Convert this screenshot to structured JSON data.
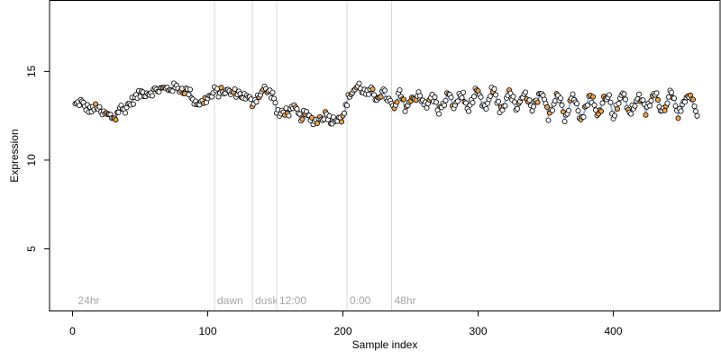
{
  "chart_data": {
    "type": "scatter",
    "xlabel": "Sample index",
    "ylabel": "Expression",
    "xlim": [
      -17,
      479
    ],
    "ylim": [
      1.5,
      19
    ],
    "x_ticks": [
      0,
      100,
      200,
      300,
      400
    ],
    "y_ticks": [
      5,
      10,
      15
    ],
    "grid": false,
    "legend": "none",
    "colors": {
      "point_fill_default": "#ffffff",
      "point_fill_highlight": "#f5a34a",
      "point_stroke": "#000000",
      "trend_line": "#7a9fd6",
      "region_line": "#d9d9d9",
      "region_label": "#a6a6a6"
    },
    "regions": [
      {
        "label": "24hr",
        "x": 2
      },
      {
        "label": "dawn",
        "x": 105
      },
      {
        "label": "dusk",
        "x": 133
      },
      {
        "label": "12:00",
        "x": 151
      },
      {
        "label": "0:00",
        "x": 203
      },
      {
        "label": "48hr",
        "x": 236
      }
    ],
    "series": [
      {
        "anchors": [
          [
            2,
            13.1
          ],
          [
            6,
            13.3
          ],
          [
            9,
            13.0
          ],
          [
            12,
            12.9
          ],
          [
            15,
            12.8
          ],
          [
            18,
            13.1
          ],
          [
            21,
            12.6
          ],
          [
            24,
            12.6
          ],
          [
            27,
            12.5
          ],
          [
            30,
            12.4
          ],
          [
            32,
            12.4
          ],
          [
            35,
            13.0
          ],
          [
            38,
            12.8
          ],
          [
            42,
            13.2
          ],
          [
            45,
            13.4
          ],
          [
            48,
            13.6
          ],
          [
            51,
            13.8
          ],
          [
            54,
            13.8
          ],
          [
            57,
            13.8
          ],
          [
            60,
            13.9
          ],
          [
            65,
            14.0
          ],
          [
            70,
            14.0
          ],
          [
            75,
            14.1
          ],
          [
            80,
            14.0
          ],
          [
            85,
            13.9
          ],
          [
            88,
            13.7
          ],
          [
            90,
            13.3
          ],
          [
            95,
            13.2
          ],
          [
            100,
            13.5
          ],
          [
            103,
            13.6
          ],
          [
            105,
            13.9
          ],
          [
            108,
            13.8
          ],
          [
            112,
            13.9
          ],
          [
            117,
            13.8
          ],
          [
            122,
            13.8
          ],
          [
            127,
            13.6
          ],
          [
            131,
            13.4
          ],
          [
            133,
            13.2
          ],
          [
            136,
            13.5
          ],
          [
            139,
            13.8
          ],
          [
            142,
            14.0
          ],
          [
            146,
            13.8
          ],
          [
            149,
            13.6
          ],
          [
            151,
            12.7
          ],
          [
            153,
            12.5
          ],
          [
            156,
            12.8
          ],
          [
            160,
            12.7
          ],
          [
            165,
            12.9
          ],
          [
            168,
            12.4
          ],
          [
            172,
            12.6
          ],
          [
            176,
            12.3
          ],
          [
            180,
            12.2
          ],
          [
            184,
            12.4
          ],
          [
            188,
            12.6
          ],
          [
            192,
            12.2
          ],
          [
            197,
            12.5
          ],
          [
            200,
            12.3
          ],
          [
            203,
            13.3
          ],
          [
            206,
            13.8
          ],
          [
            209,
            14.0
          ],
          [
            212,
            14.2
          ],
          [
            215,
            13.9
          ],
          [
            218,
            13.7
          ],
          [
            221,
            13.9
          ],
          [
            224,
            13.5
          ],
          [
            227,
            13.7
          ],
          [
            230,
            13.8
          ],
          [
            233,
            13.5
          ],
          [
            236,
            13.1
          ],
          [
            238,
            12.8
          ],
          [
            242,
            13.8
          ],
          [
            246,
            13.0
          ],
          [
            250,
            13.3
          ],
          [
            253,
            13.5
          ],
          [
            256,
            13.8
          ],
          [
            259,
            13.4
          ],
          [
            262,
            12.9
          ],
          [
            265,
            13.6
          ],
          [
            268,
            13.4
          ],
          [
            271,
            12.8
          ],
          [
            274,
            13.0
          ],
          [
            277,
            13.7
          ],
          [
            280,
            13.4
          ],
          [
            283,
            12.9
          ],
          [
            286,
            13.7
          ],
          [
            289,
            13.6
          ],
          [
            292,
            12.9
          ],
          [
            295,
            13.2
          ],
          [
            298,
            13.8
          ],
          [
            301,
            13.6
          ],
          [
            304,
            12.9
          ],
          [
            307,
            13.1
          ],
          [
            310,
            13.9
          ],
          [
            313,
            13.7
          ],
          [
            316,
            12.8
          ],
          [
            319,
            13.0
          ],
          [
            322,
            13.8
          ],
          [
            325,
            13.6
          ],
          [
            328,
            12.9
          ],
          [
            331,
            13.1
          ],
          [
            334,
            13.7
          ],
          [
            337,
            13.5
          ],
          [
            340,
            12.7
          ],
          [
            343,
            13.3
          ],
          [
            346,
            13.6
          ],
          [
            349,
            13.4
          ],
          [
            352,
            12.5
          ],
          [
            355,
            13.0
          ],
          [
            358,
            13.8
          ],
          [
            361,
            13.5
          ],
          [
            364,
            12.3
          ],
          [
            367,
            12.9
          ],
          [
            370,
            13.7
          ],
          [
            373,
            13.4
          ],
          [
            376,
            12.2
          ],
          [
            379,
            12.8
          ],
          [
            382,
            13.6
          ],
          [
            385,
            13.4
          ],
          [
            388,
            12.4
          ],
          [
            391,
            13.0
          ],
          [
            394,
            13.7
          ],
          [
            397,
            13.5
          ],
          [
            400,
            12.5
          ],
          [
            403,
            13.1
          ],
          [
            406,
            13.7
          ],
          [
            409,
            13.4
          ],
          [
            412,
            12.6
          ],
          [
            415,
            13.0
          ],
          [
            418,
            13.6
          ],
          [
            421,
            13.4
          ],
          [
            424,
            12.7
          ],
          [
            427,
            13.2
          ],
          [
            430,
            13.7
          ],
          [
            433,
            13.5
          ],
          [
            436,
            12.7
          ],
          [
            439,
            13.2
          ],
          [
            442,
            13.8
          ],
          [
            445,
            13.6
          ],
          [
            448,
            12.6
          ],
          [
            451,
            12.9
          ],
          [
            454,
            13.4
          ],
          [
            457,
            13.6
          ],
          [
            460,
            13.0
          ],
          [
            462,
            12.3
          ]
        ]
      }
    ]
  }
}
